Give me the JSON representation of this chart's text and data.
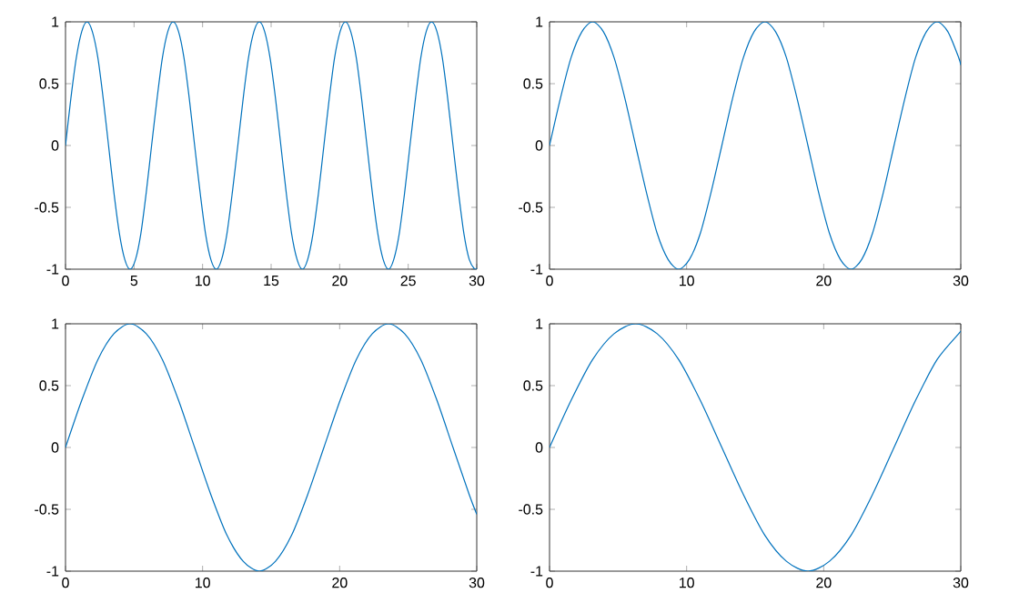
{
  "chart_data": [
    {
      "type": "line",
      "xlim": [
        0,
        30
      ],
      "ylim": [
        -1,
        1
      ],
      "xticks": [
        0,
        5,
        10,
        15,
        20,
        25,
        30
      ],
      "yticks": [
        -1,
        -0.5,
        0,
        0.5,
        1
      ],
      "series": [
        {
          "color": "#0072bd",
          "x": [
            0,
            0.39,
            0.79,
            1.18,
            1.57,
            1.96,
            2.36,
            2.75,
            3.14,
            3.53,
            3.93,
            4.32,
            4.71,
            5.11,
            5.5,
            5.89,
            6.28,
            6.68,
            7.07,
            7.46,
            7.85,
            8.25,
            8.64,
            9.03,
            9.42,
            9.82,
            10.21,
            10.6,
            11,
            11.39,
            11.78,
            12.17,
            12.57,
            12.96,
            13.35,
            13.74,
            14.14,
            14.53,
            14.92,
            15.32,
            15.71,
            16.1,
            16.49,
            16.89,
            17.28,
            17.67,
            18.06,
            18.46,
            18.85,
            19.24,
            19.63,
            20.03,
            20.42,
            20.81,
            21.21,
            21.6,
            21.99,
            22.38,
            22.78,
            23.17,
            23.56,
            23.95,
            24.35,
            24.74,
            25.13,
            25.53,
            25.92,
            26.31,
            26.7,
            27.1,
            27.49,
            27.88,
            28.27,
            28.67,
            29.06,
            29.45,
            29.85,
            30
          ],
          "values": [
            0,
            0.38,
            0.71,
            0.92,
            1,
            0.92,
            0.71,
            0.38,
            0,
            -0.38,
            -0.71,
            -0.92,
            -1,
            -0.92,
            -0.71,
            -0.38,
            0,
            0.38,
            0.71,
            0.92,
            1,
            0.92,
            0.71,
            0.38,
            0,
            -0.38,
            -0.71,
            -0.92,
            -1,
            -0.92,
            -0.71,
            -0.38,
            0,
            0.38,
            0.71,
            0.92,
            1,
            0.92,
            0.71,
            0.38,
            0,
            -0.38,
            -0.71,
            -0.92,
            -1,
            -0.92,
            -0.71,
            -0.38,
            0,
            0.38,
            0.71,
            0.92,
            1,
            0.92,
            0.71,
            0.38,
            0,
            -0.38,
            -0.71,
            -0.92,
            -1,
            -0.92,
            -0.71,
            -0.38,
            0,
            0.38,
            0.71,
            0.92,
            1,
            0.92,
            0.71,
            0.38,
            0,
            -0.38,
            -0.71,
            -0.92,
            -1,
            -0.99
          ]
        }
      ]
    },
    {
      "type": "line",
      "xlim": [
        0,
        30
      ],
      "ylim": [
        -1,
        1
      ],
      "xticks": [
        0,
        10,
        20,
        30
      ],
      "yticks": [
        -1,
        -0.5,
        0,
        0.5,
        1
      ],
      "series": [
        {
          "color": "#0072bd",
          "x": [
            0,
            0.79,
            1.57,
            2.36,
            3.14,
            3.93,
            4.71,
            5.5,
            6.28,
            7.07,
            7.85,
            8.64,
            9.42,
            10.21,
            11,
            11.78,
            12.57,
            13.35,
            14.14,
            14.92,
            15.71,
            16.49,
            17.28,
            18.06,
            18.85,
            19.63,
            20.42,
            21.21,
            21.99,
            22.78,
            23.56,
            24.35,
            25.13,
            25.92,
            26.7,
            27.49,
            28.27,
            29.06,
            29.85,
            30
          ],
          "values": [
            0,
            0.38,
            0.71,
            0.92,
            1,
            0.92,
            0.71,
            0.38,
            0,
            -0.38,
            -0.71,
            -0.92,
            -1,
            -0.92,
            -0.71,
            -0.38,
            0,
            0.38,
            0.71,
            0.92,
            1,
            0.92,
            0.71,
            0.38,
            0,
            -0.38,
            -0.71,
            -0.92,
            -1,
            -0.92,
            -0.71,
            -0.38,
            0,
            0.38,
            0.71,
            0.92,
            1,
            0.92,
            0.71,
            0.65
          ]
        }
      ]
    },
    {
      "type": "line",
      "xlim": [
        0,
        30
      ],
      "ylim": [
        -1,
        1
      ],
      "xticks": [
        0,
        10,
        20,
        30
      ],
      "yticks": [
        -1,
        -0.5,
        0,
        0.5,
        1
      ],
      "series": [
        {
          "color": "#0072bd",
          "x": [
            0,
            1.18,
            2.36,
            3.53,
            4.71,
            5.89,
            7.07,
            8.25,
            9.42,
            10.6,
            11.78,
            12.96,
            14.14,
            15.32,
            16.49,
            17.67,
            18.85,
            20.03,
            21.21,
            22.38,
            23.56,
            24.74,
            25.92,
            27.1,
            28.27,
            29.45,
            30
          ],
          "values": [
            0,
            0.38,
            0.71,
            0.92,
            1,
            0.92,
            0.71,
            0.38,
            0,
            -0.38,
            -0.71,
            -0.92,
            -1,
            -0.92,
            -0.71,
            -0.38,
            0,
            0.38,
            0.71,
            0.92,
            1,
            0.92,
            0.71,
            0.38,
            0,
            -0.38,
            -0.54
          ]
        }
      ]
    },
    {
      "type": "line",
      "xlim": [
        0,
        30
      ],
      "ylim": [
        -1,
        1
      ],
      "xticks": [
        0,
        10,
        20,
        30
      ],
      "yticks": [
        -1,
        -0.5,
        0,
        0.5,
        1
      ],
      "series": [
        {
          "color": "#0072bd",
          "x": [
            0,
            1.57,
            3.14,
            4.71,
            6.28,
            7.85,
            9.42,
            11,
            12.57,
            14.14,
            15.71,
            17.28,
            18.85,
            20.42,
            21.99,
            23.56,
            25.13,
            26.7,
            28.27,
            29.85,
            30
          ],
          "values": [
            0,
            0.38,
            0.71,
            0.92,
            1,
            0.92,
            0.71,
            0.38,
            0,
            -0.38,
            -0.71,
            -0.92,
            -1,
            -0.92,
            -0.71,
            -0.38,
            0,
            0.38,
            0.71,
            0.92,
            0.94
          ]
        }
      ]
    }
  ]
}
